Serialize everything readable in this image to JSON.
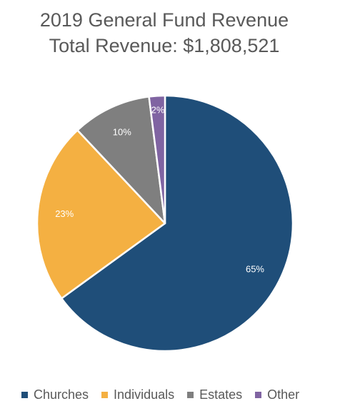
{
  "title_lines": [
    "2019 General Fund Revenue",
    "Total Revenue: $1,808,521"
  ],
  "chart_data": {
    "type": "pie",
    "title": "2019 General Fund Revenue",
    "subtitle": "Total Revenue: $1,808,521",
    "categories": [
      "Churches",
      "Individuals",
      "Estates",
      "Other"
    ],
    "values": [
      65,
      23,
      10,
      2
    ],
    "labels": [
      "65%",
      "23%",
      "10%",
      "2%"
    ],
    "colors": [
      "#1f4e79",
      "#f4b042",
      "#7f7f7f",
      "#8064a2"
    ],
    "start_angle_deg": 0,
    "direction": "clockwise",
    "legend_position": "bottom"
  }
}
